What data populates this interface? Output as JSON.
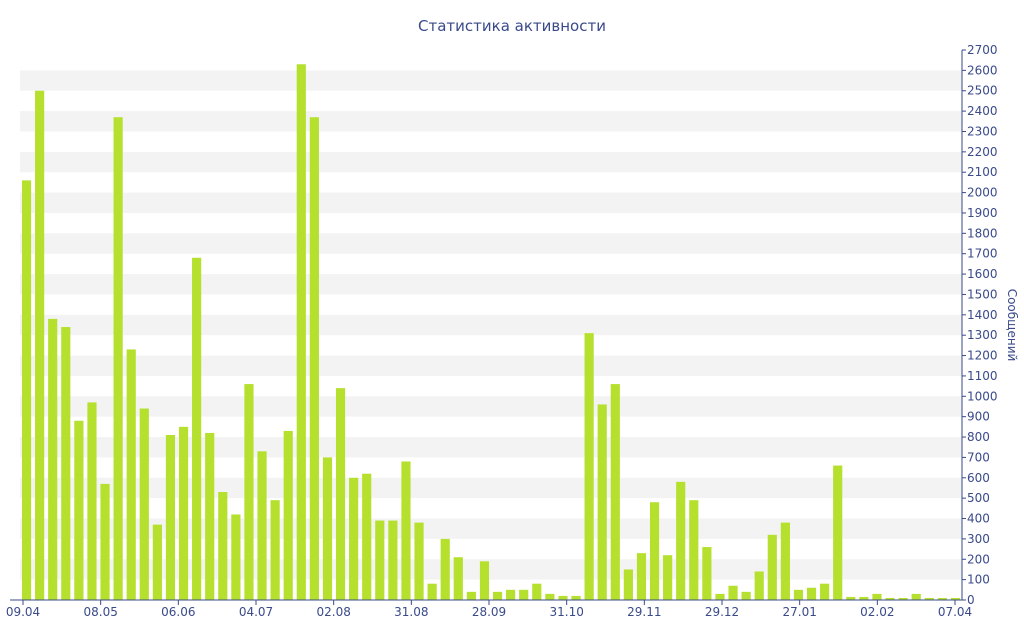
{
  "chart_data": {
    "type": "bar",
    "title": "Статистика активности",
    "xlabel": "",
    "ylabel": "Сообщений",
    "ylim": [
      0,
      2700
    ],
    "y_ticks": [
      0,
      100,
      200,
      300,
      400,
      500,
      600,
      700,
      800,
      900,
      1000,
      1100,
      1200,
      1300,
      1400,
      1500,
      1600,
      1700,
      1800,
      1900,
      2000,
      2100,
      2200,
      2300,
      2400,
      2500,
      2600,
      2700
    ],
    "y_axis_side": "right",
    "grid": "horizontal alternating bands",
    "legend": "none",
    "x_tick_labels": [
      "09.04",
      "08.05",
      "06.06",
      "04.07",
      "02.08",
      "31.08",
      "28.09",
      "31.10",
      "29.11",
      "29.12",
      "27.01",
      "02.02",
      "07.04"
    ],
    "values": [
      2060,
      2500,
      1380,
      1340,
      880,
      970,
      570,
      2370,
      1230,
      940,
      370,
      810,
      850,
      1680,
      820,
      530,
      420,
      1060,
      730,
      490,
      830,
      2630,
      2370,
      700,
      1040,
      600,
      620,
      390,
      390,
      680,
      380,
      80,
      300,
      210,
      40,
      190,
      40,
      50,
      50,
      80,
      30,
      20,
      20,
      1310,
      960,
      1060,
      150,
      230,
      480,
      220,
      580,
      490,
      260,
      30,
      70,
      40,
      140,
      320,
      380,
      50,
      60,
      80,
      660,
      15,
      15,
      30,
      10,
      10,
      30,
      10,
      10,
      10
    ],
    "colors": {
      "bar": "#b5e02e",
      "axis_text": "#3a4a8a",
      "band": "#f3f3f3",
      "axis_line": "#3a4a8a"
    }
  }
}
